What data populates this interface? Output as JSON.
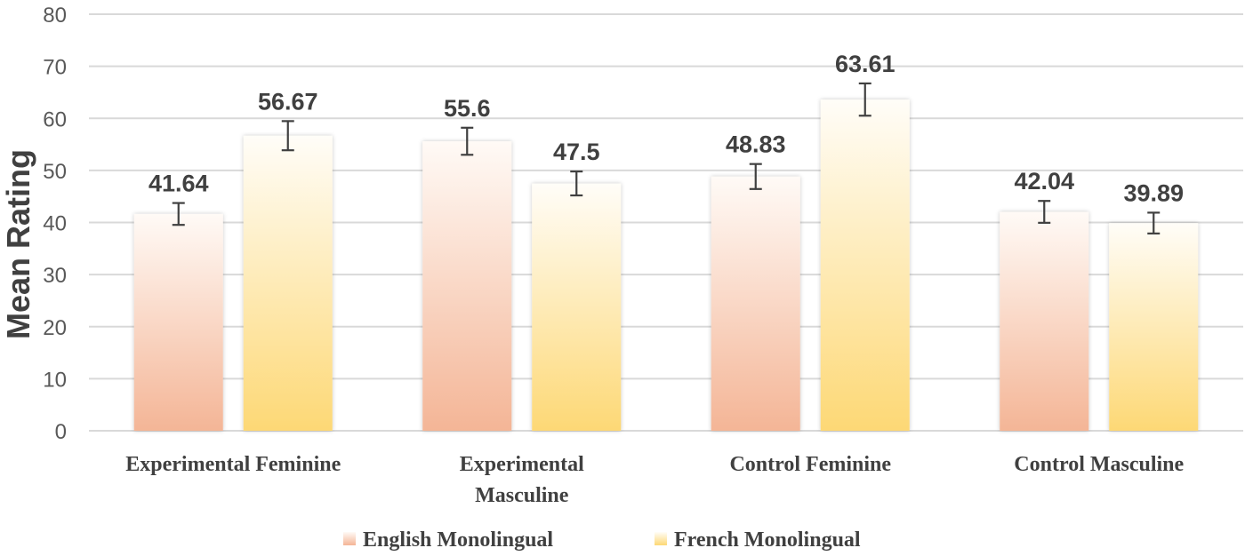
{
  "chart_data": {
    "type": "bar",
    "ylabel": "Mean Rating",
    "xlabel": "",
    "ylim": [
      0,
      80
    ],
    "yticks": [
      "0",
      "10",
      "20",
      "30",
      "40",
      "50",
      "60",
      "70",
      "80"
    ],
    "grid": true,
    "legend_position": "bottom",
    "categories": [
      [
        "Experimental Feminine"
      ],
      [
        "Experimental",
        "Masculine"
      ],
      [
        "Control Feminine"
      ],
      [
        "Control Masculine"
      ]
    ],
    "series": [
      {
        "name": "English Monolingual",
        "values": [
          41.64,
          55.6,
          48.83,
          42.04
        ],
        "labels": [
          "41.64",
          "55.6",
          "48.83",
          "42.04"
        ],
        "error": [
          2.1,
          2.6,
          2.4,
          2.1
        ],
        "color_top": "#fffaf6",
        "color_bottom": "#f4b596"
      },
      {
        "name": "French Monolingual",
        "values": [
          56.67,
          47.5,
          63.61,
          39.89
        ],
        "labels": [
          "56.67",
          "47.5",
          "63.61",
          "39.89"
        ],
        "error": [
          2.8,
          2.3,
          3.1,
          2.0
        ],
        "color_top": "#fffdf8",
        "color_bottom": "#fdd875"
      }
    ]
  }
}
